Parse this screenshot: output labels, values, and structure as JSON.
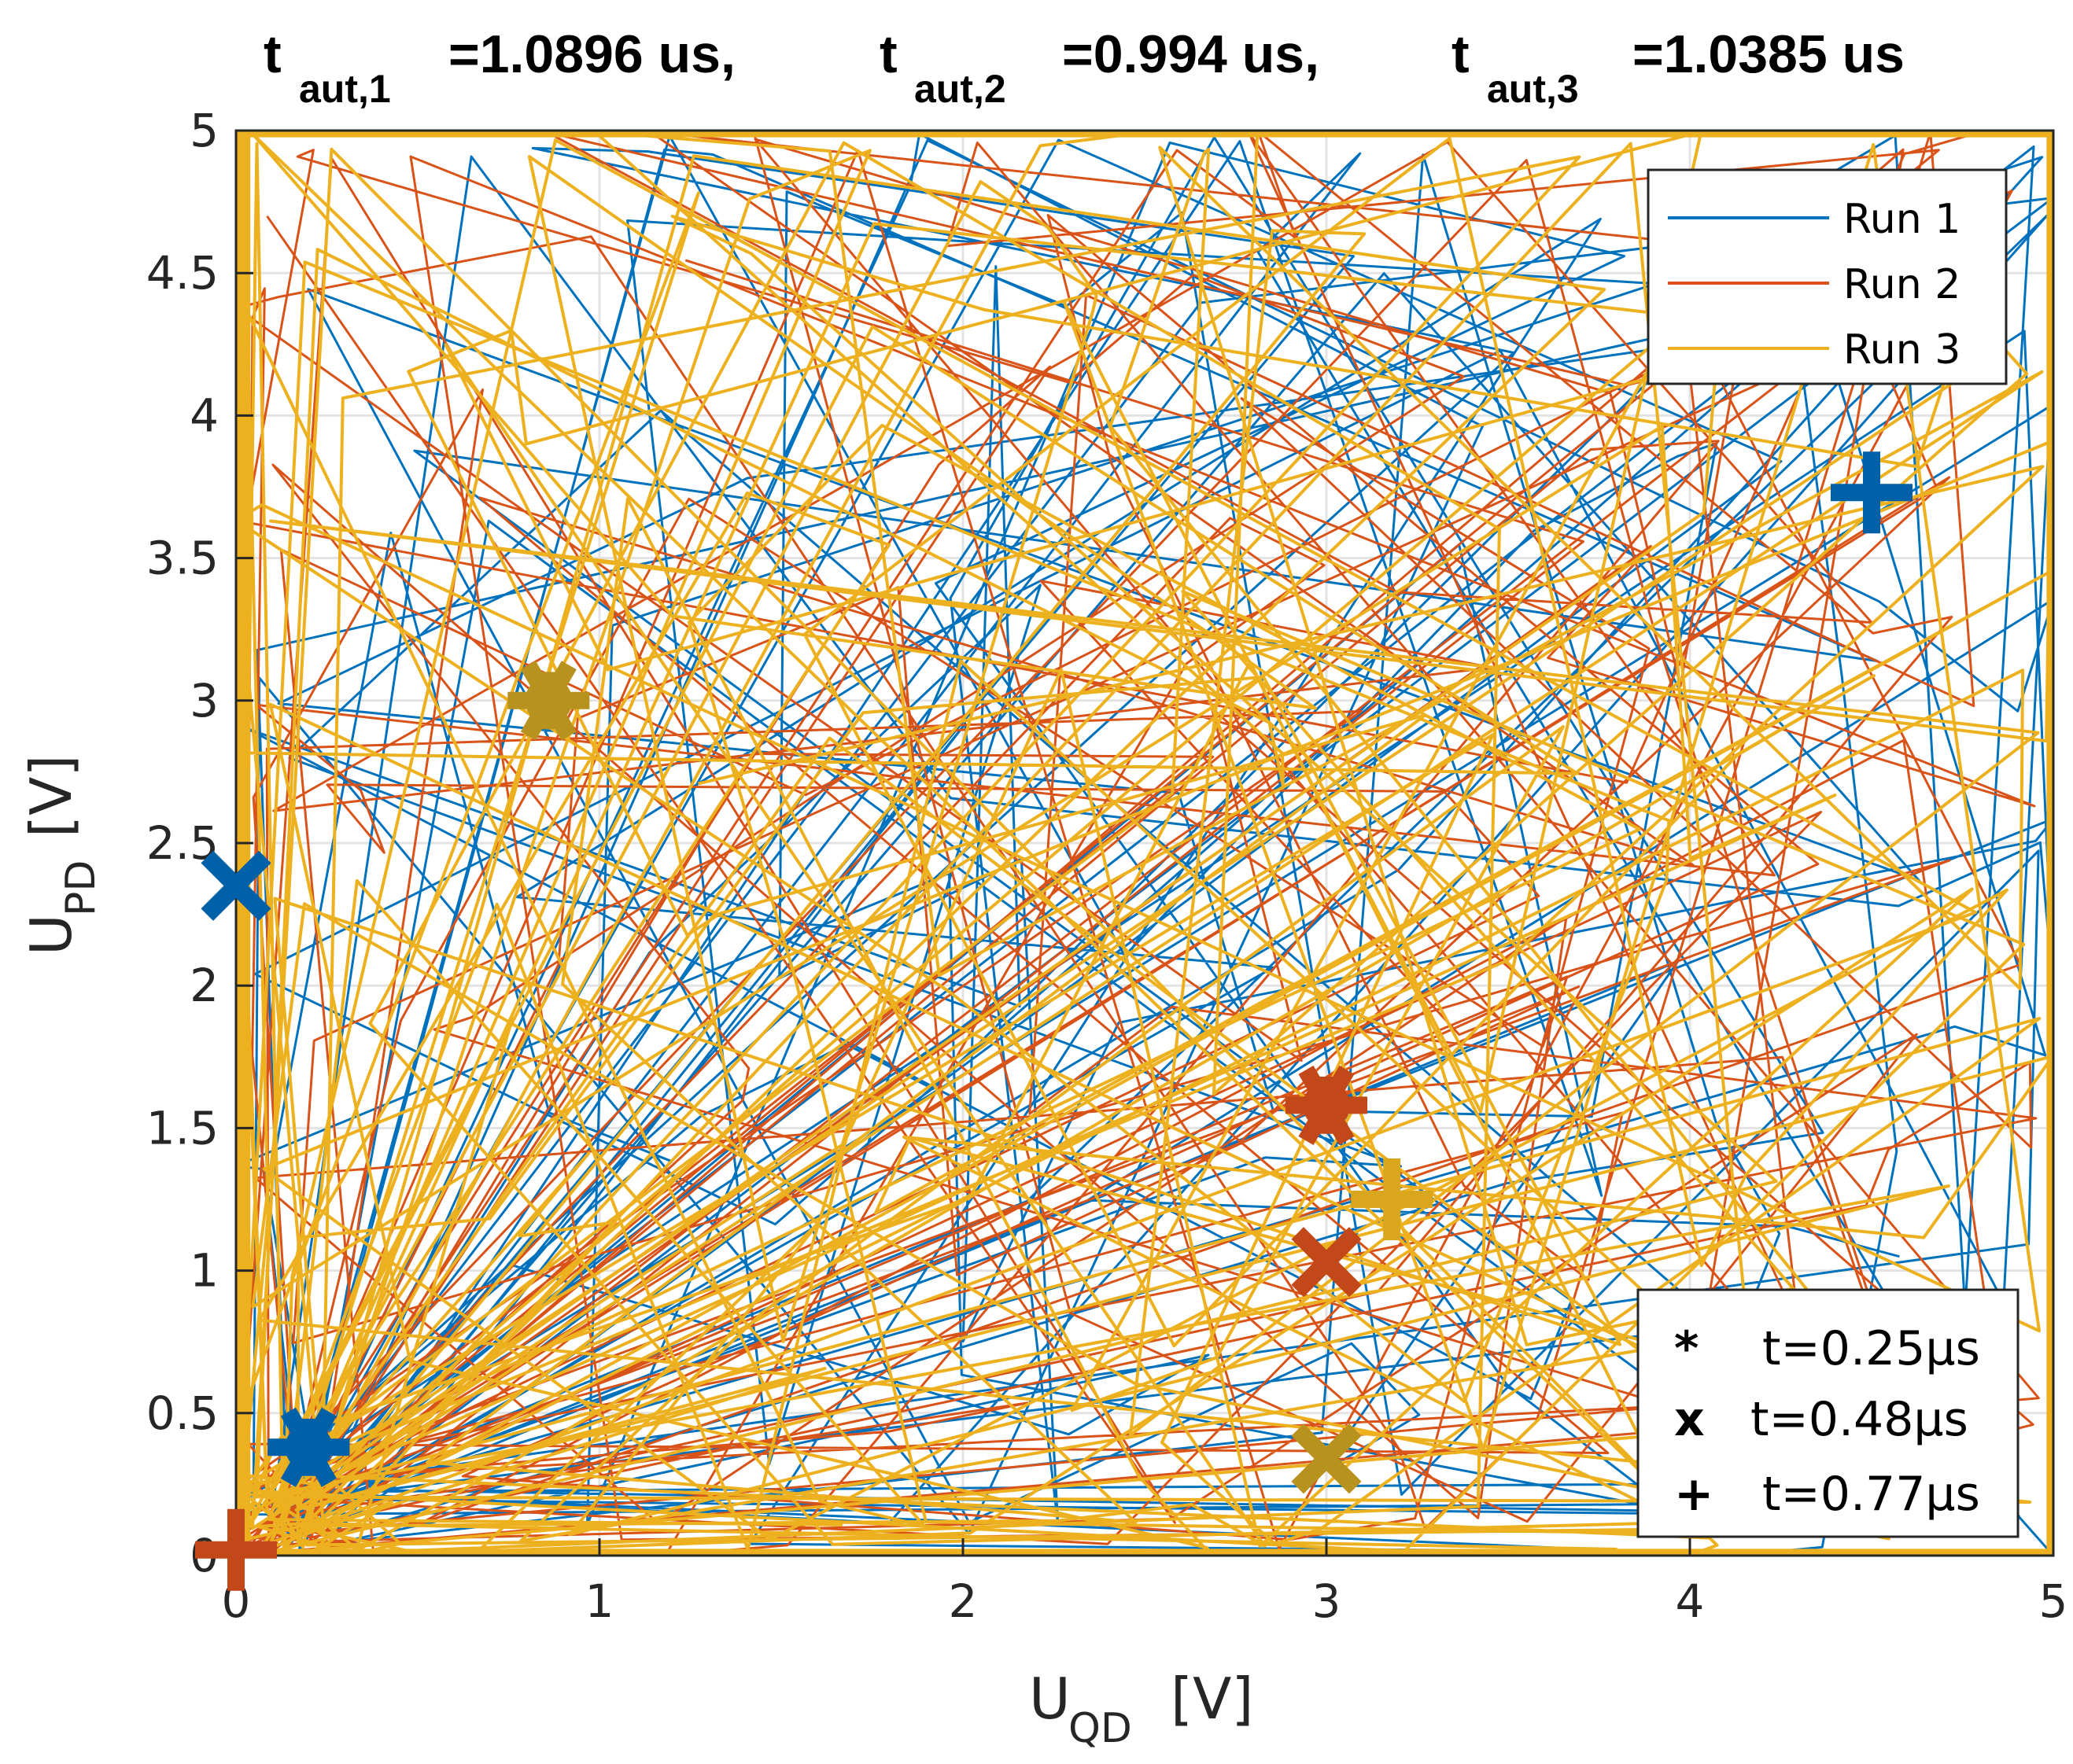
{
  "chart_data": {
    "type": "line",
    "title_parts": [
      {
        "t": "t",
        "sub": "aut,1",
        "value": "=1.0896 us,"
      },
      {
        "t": "t",
        "sub": "aut,2",
        "value": "=0.994 us,"
      },
      {
        "t": "t",
        "sub": "aut,3",
        "value": "=1.0385 us"
      }
    ],
    "xlabel": {
      "main": "U",
      "sub": "QD",
      "unit": "[V]"
    },
    "ylabel": {
      "main": "U",
      "sub": "PD",
      "unit": "[V]"
    },
    "xlim": [
      0,
      5
    ],
    "ylim": [
      0,
      5
    ],
    "xticks": [
      0,
      1,
      2,
      3,
      4,
      5
    ],
    "yticks": [
      0,
      0.5,
      1,
      1.5,
      2,
      2.5,
      3,
      3.5,
      4,
      4.5,
      5
    ],
    "grid": true,
    "legend_position": "top-right",
    "series": [
      {
        "name": "Run 1",
        "color": "#0072BD",
        "seed": 11,
        "segments": 170
      },
      {
        "name": "Run 2",
        "color": "#D95319",
        "seed": 29,
        "segments": 190
      },
      {
        "name": "Run 3",
        "color": "#EDB120",
        "seed": 47,
        "segments": 260
      }
    ],
    "markers": [
      {
        "series": "Run 1",
        "symbol": "*",
        "time": "t=0.25µs",
        "x": 0.2,
        "y": 0.38,
        "color": "#0060A8"
      },
      {
        "series": "Run 1",
        "symbol": "x",
        "time": "t=0.48µs",
        "x": 0.0,
        "y": 2.35,
        "color": "#0060A8"
      },
      {
        "series": "Run 1",
        "symbol": "+",
        "time": "t=0.77µs",
        "x": 4.5,
        "y": 3.73,
        "color": "#0060A8"
      },
      {
        "series": "Run 2",
        "symbol": "*",
        "time": "t=0.25µs",
        "x": 3.0,
        "y": 1.58,
        "color": "#C2481A"
      },
      {
        "series": "Run 2",
        "symbol": "x",
        "time": "t=0.48µs",
        "x": 3.0,
        "y": 1.03,
        "color": "#C2481A"
      },
      {
        "series": "Run 2",
        "symbol": "+",
        "time": "t=0.77µs",
        "x": 0.0,
        "y": 0.02,
        "color": "#C2481A"
      },
      {
        "series": "Run 3",
        "symbol": "*",
        "time": "t=0.25µs",
        "x": 0.86,
        "y": 3.0,
        "color": "#B8921E"
      },
      {
        "series": "Run 3",
        "symbol": "x",
        "time": "t=0.48µs",
        "x": 3.0,
        "y": 0.34,
        "color": "#B8921E"
      },
      {
        "series": "Run 3",
        "symbol": "+",
        "time": "t=0.77µs",
        "x": 3.18,
        "y": 1.25,
        "color": "#D9A61E"
      }
    ],
    "marker_legend": [
      {
        "symbol": "*",
        "label": "t=0.25µs"
      },
      {
        "symbol": "x",
        "label": "t=0.48µs"
      },
      {
        "symbol": "+",
        "label": "t=0.77µs"
      }
    ]
  }
}
